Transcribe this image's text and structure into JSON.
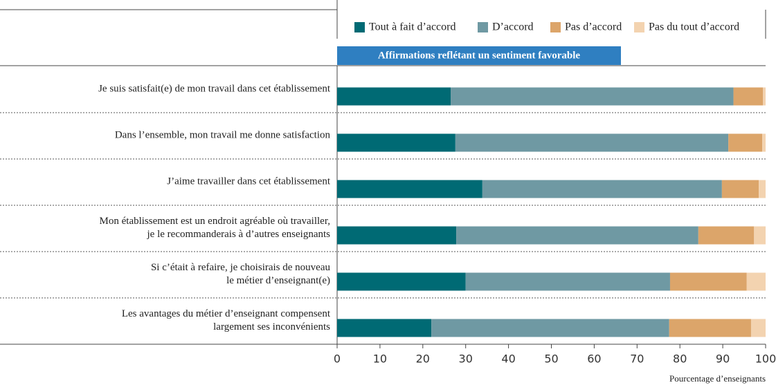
{
  "chart_data": {
    "type": "stacked_barh",
    "subtitle": "Affirmations reflétant un sentiment favorable",
    "x_label": "Pourcentage d’enseignants",
    "categories": [
      "Je suis satisfait(e) de mon travail dans cet établissement",
      "Dans l’ensemble, mon travail me donne satisfaction",
      "J’aime travailler dans cet établissement",
      "Mon établissement est un endroit agréable où travailler,\nje le recommanderais à d’autres enseignants",
      "Si c’était à refaire, je choisirais de nouveau\nle métier d’enseignant(e)",
      "Les avantages du métier d’enseignant compensent\nlargement ses inconvénients"
    ],
    "series": [
      {
        "name": "Tout à fait d’accord",
        "color": "#006a74",
        "values": [
          26.5,
          27.6,
          33.9,
          27.8,
          30.0,
          22.0
        ]
      },
      {
        "name": "D’accord",
        "color": "#6f99a3",
        "values": [
          66.0,
          63.7,
          55.9,
          56.5,
          47.7,
          55.5
        ]
      },
      {
        "name": "Pas d’accord",
        "color": "#dca56a",
        "values": [
          6.9,
          7.9,
          8.6,
          13.0,
          17.9,
          19.1
        ]
      },
      {
        "name": "Pas du tout d’accord",
        "color": "#f3d3b0",
        "values": [
          0.6,
          0.8,
          1.6,
          2.7,
          4.4,
          3.4
        ]
      }
    ],
    "xlim": [
      0,
      100
    ],
    "xticks": [
      0,
      10,
      20,
      30,
      40,
      50,
      60,
      70,
      80,
      90,
      100
    ]
  }
}
